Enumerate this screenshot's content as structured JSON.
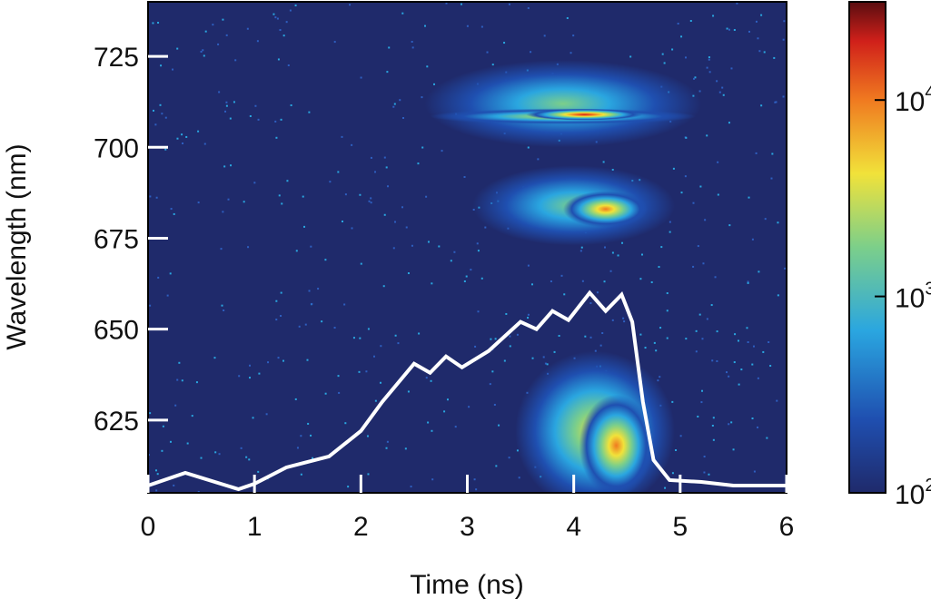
{
  "chart_data": {
    "type": "heatmap",
    "title": "",
    "xlabel": "Time (ns)",
    "ylabel": "Wavelength (nm)",
    "xlim": [
      0,
      6
    ],
    "ylim": [
      605,
      740
    ],
    "xticks": [
      "0",
      "1",
      "2",
      "3",
      "4",
      "5",
      "6"
    ],
    "yticks": [
      "625",
      "650",
      "675",
      "700",
      "725"
    ],
    "colorbar": {
      "scale": "log",
      "range": [
        100,
        31623
      ],
      "ticks": [
        {
          "base": "10",
          "exp": "2",
          "value": 100
        },
        {
          "base": "10",
          "exp": "3",
          "value": 1000
        },
        {
          "base": "10",
          "exp": "4",
          "value": 10000
        }
      ]
    },
    "background_color": "#1f2a6b",
    "emission_regions": [
      {
        "name": "halo-710",
        "t": 3.9,
        "w": 712,
        "st": 1.3,
        "sw": 12,
        "peak": 800
      },
      {
        "name": "band-709",
        "t": 3.9,
        "w": 708.5,
        "st": 1.25,
        "sw": 2.2,
        "peak": 4000
      },
      {
        "name": "core-709",
        "t": 4.1,
        "w": 709,
        "st": 0.55,
        "sw": 1.6,
        "peak": 25000
      },
      {
        "name": "blob-683",
        "t": 4.0,
        "w": 684,
        "st": 0.95,
        "sw": 11,
        "peak": 1500
      },
      {
        "name": "core-683",
        "t": 4.3,
        "w": 683,
        "st": 0.4,
        "sw": 5,
        "peak": 7000
      },
      {
        "name": "blob-625",
        "t": 4.2,
        "w": 622,
        "st": 0.75,
        "sw": 22,
        "peak": 2000
      },
      {
        "name": "core-625",
        "t": 4.4,
        "w": 618,
        "st": 0.35,
        "sw": 14,
        "peak": 8000
      }
    ],
    "overlay_line": {
      "color": "#ffffff",
      "t": [
        0,
        0.35,
        0.85,
        1.0,
        1.3,
        1.7,
        2.0,
        2.2,
        2.5,
        2.65,
        2.8,
        2.95,
        3.2,
        3.5,
        3.65,
        3.8,
        3.95,
        4.15,
        4.3,
        4.45,
        4.55,
        4.65,
        4.75,
        4.9,
        5.2,
        5.5,
        6.0
      ],
      "w": [
        607,
        610.5,
        606,
        607.5,
        612,
        615,
        622,
        630,
        640.5,
        638,
        642.5,
        639.5,
        644,
        652,
        650,
        655,
        652.5,
        660,
        655,
        659.5,
        652,
        630,
        614,
        608.5,
        608,
        607,
        607
      ]
    }
  }
}
